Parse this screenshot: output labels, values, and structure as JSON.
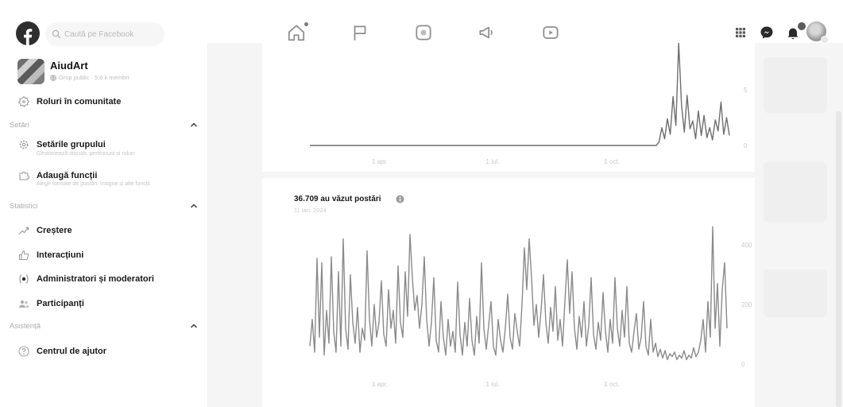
{
  "topbar": {
    "search_placeholder": "Caută pe Facebook",
    "nav_icons": [
      "home-icon",
      "flag-icon",
      "marketplace-icon",
      "megaphone-icon",
      "video-icon"
    ],
    "right_icons": [
      "menu-grid-icon",
      "messenger-icon",
      "bell-icon",
      "account-avatar"
    ]
  },
  "sidebar": {
    "group": {
      "name": "AiudArt",
      "meta": "Grup public · 5,6 k membri"
    },
    "roles": {
      "label": "Roluri în comunitate",
      "icon": "community-roles-icon"
    },
    "sections": {
      "settings": {
        "title": "Setări",
        "items": [
          {
            "label": "Setările grupului",
            "description": "Gestionează discuții, permisiuni și roluri",
            "icon": "gear-icon"
          },
          {
            "label": "Adaugă funcții",
            "description": "Alege formate de postări, insigne și alte funcții",
            "icon": "add-features-icon"
          }
        ]
      },
      "insights": {
        "title": "Statistici",
        "items": [
          {
            "label": "Creștere",
            "icon": "growth-icon"
          },
          {
            "label": "Interacțiuni",
            "icon": "interactions-icon"
          },
          {
            "label": "Administratori și moderatori",
            "icon": "admins-icon"
          },
          {
            "label": "Participanți",
            "icon": "participants-icon"
          }
        ]
      },
      "support": {
        "title": "Asistență",
        "items": [
          {
            "label": "Centrul de ajutor",
            "icon": "help-icon"
          }
        ]
      }
    }
  },
  "colors": {
    "series_line": "#8a8a8a",
    "text": "#1b1b1b",
    "muted": "#c4c4c4"
  },
  "chart_data": [
    {
      "type": "line",
      "x_ticks": [
        "1 apr.",
        "1 iul.",
        "1 oct."
      ],
      "y_ticks": [
        "0",
        "5"
      ],
      "ylim": [
        0,
        10
      ],
      "grid": false,
      "values": [
        0,
        0,
        0,
        0,
        0,
        0,
        0,
        0,
        0,
        0,
        0,
        0,
        0,
        0,
        0,
        0,
        0,
        0,
        0,
        0,
        0,
        0,
        0,
        0,
        0,
        0,
        0,
        0,
        0,
        0,
        0,
        0,
        0,
        0,
        0,
        0,
        0,
        0,
        0,
        0,
        0,
        0,
        0,
        0,
        0,
        0,
        0,
        0,
        0,
        0,
        0,
        0,
        0,
        0,
        0,
        0,
        0,
        0,
        0,
        0,
        0,
        0,
        0,
        0,
        0,
        0,
        0,
        0,
        0,
        0,
        0,
        0,
        0,
        0,
        0,
        0,
        0,
        0,
        0,
        0,
        0,
        0,
        0,
        0,
        0,
        0,
        0,
        0,
        0,
        0,
        0,
        0,
        0,
        0,
        0,
        0,
        0,
        0,
        0,
        0,
        0,
        0,
        0,
        0,
        0,
        0,
        0,
        0,
        0,
        0,
        0,
        0,
        0,
        0,
        0,
        0,
        0,
        0,
        0,
        0,
        0,
        0,
        0,
        0,
        0.3,
        1.6,
        0.6,
        2.4,
        1.0,
        4.4,
        1.8,
        9.2,
        3.6,
        1.2,
        4.5,
        1.5,
        2.2,
        0.6,
        3.1,
        0.9,
        2.7,
        0.7,
        1.6,
        0.5,
        2.3,
        1.3,
        3.9,
        1.0,
        2.5,
        0.9
      ]
    },
    {
      "type": "line",
      "title": "36.709 au văzut postări",
      "subtitle": "11 ian. 2024",
      "x_ticks": [
        "1 apr.",
        "1 iul.",
        "1 oct."
      ],
      "y_ticks": [
        "0",
        "200",
        "400"
      ],
      "ylim": [
        0,
        480
      ],
      "grid": false,
      "values": [
        60,
        150,
        40,
        355,
        90,
        340,
        30,
        180,
        70,
        360,
        110,
        40,
        310,
        60,
        420,
        120,
        50,
        300,
        140,
        70,
        190,
        40,
        120,
        80,
        380,
        150,
        60,
        200,
        90,
        140,
        280,
        100,
        60,
        250,
        120,
        180,
        70,
        330,
        140,
        90,
        310,
        160,
        435,
        290,
        180,
        230,
        120,
        200,
        360,
        150,
        60,
        140,
        290,
        80,
        40,
        210,
        90,
        30,
        150,
        60,
        110,
        40,
        275,
        100,
        30,
        140,
        60,
        220,
        80,
        30,
        160,
        70,
        340,
        120,
        50,
        130,
        210,
        60,
        30,
        150,
        80,
        40,
        120,
        235,
        90,
        50,
        170,
        110,
        60,
        200,
        390,
        250,
        420,
        290,
        130,
        200,
        90,
        180,
        300,
        140,
        70,
        190,
        110,
        260,
        80,
        150,
        60,
        210,
        350,
        170,
        310,
        120,
        50,
        160,
        90,
        210,
        60,
        130,
        290,
        100,
        50,
        140,
        80,
        240,
        110,
        40,
        150,
        70,
        290,
        120,
        60,
        180,
        90,
        260,
        70,
        40,
        110,
        170,
        50,
        90,
        210,
        60,
        30,
        150,
        40,
        70,
        25,
        50,
        20,
        45,
        15,
        35,
        25,
        40,
        15,
        30,
        20,
        45,
        15,
        30,
        20,
        55,
        25,
        40,
        80,
        150,
        40,
        210,
        90,
        461,
        120,
        270,
        60,
        250,
        340,
        120
      ]
    }
  ]
}
